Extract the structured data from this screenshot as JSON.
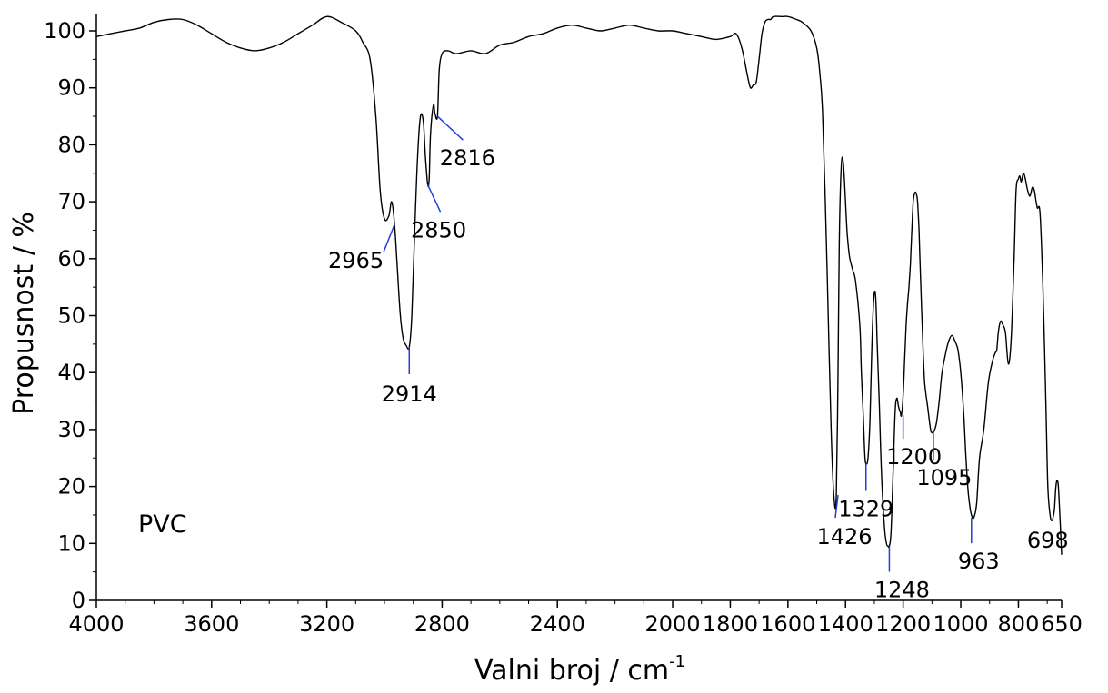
{
  "chart_data": {
    "type": "line",
    "title": "",
    "sample_label": "PVC",
    "xlabel": "Valni broj / cm",
    "xlabel_superscript": "-1",
    "ylabel": "Propusnost / %",
    "xlim": [
      4000,
      650
    ],
    "x_reversed": true,
    "ylim": [
      0,
      104
    ],
    "x_ticks": [
      4000,
      3600,
      3200,
      2800,
      2400,
      2000,
      1800,
      1600,
      1400,
      1200,
      1000,
      800,
      650
    ],
    "y_ticks": [
      0,
      10,
      20,
      30,
      40,
      50,
      60,
      70,
      80,
      90,
      100
    ],
    "grid": false,
    "line_color": "#000000",
    "peak_marker_color": "#1f3fe0",
    "series": [
      {
        "x": [
          4000,
          3950,
          3900,
          3850,
          3800,
          3750,
          3700,
          3650,
          3600,
          3550,
          3500,
          3450,
          3400,
          3350,
          3300,
          3250,
          3200,
          3150,
          3100,
          3075,
          3050,
          3030,
          3015,
          3000,
          2985,
          2975,
          2965,
          2955,
          2945,
          2935,
          2925,
          2914,
          2905,
          2895,
          2885,
          2875,
          2865,
          2858,
          2850,
          2845,
          2840,
          2830,
          2825,
          2816,
          2810,
          2800,
          2780,
          2750,
          2700,
          2650,
          2600,
          2550,
          2500,
          2450,
          2400,
          2350,
          2300,
          2250,
          2200,
          2150,
          2100,
          2050,
          2000,
          1950,
          1900,
          1850,
          1800,
          1780,
          1760,
          1740,
          1730,
          1720,
          1710,
          1700,
          1690,
          1680,
          1670,
          1660,
          1650,
          1620,
          1600,
          1570,
          1550,
          1520,
          1500,
          1490,
          1480,
          1470,
          1460,
          1450,
          1440,
          1432,
          1426,
          1422,
          1415,
          1408,
          1400,
          1395,
          1390,
          1385,
          1375,
          1365,
          1350,
          1345,
          1338,
          1333,
          1329,
          1322,
          1315,
          1310,
          1305,
          1300,
          1295,
          1290,
          1283,
          1275,
          1265,
          1258,
          1252,
          1248,
          1242,
          1235,
          1228,
          1222,
          1216,
          1210,
          1206,
          1200,
          1195,
          1190,
          1185,
          1180,
          1175,
          1170,
          1165,
          1160,
          1155,
          1150,
          1145,
          1140,
          1135,
          1130,
          1125,
          1115,
          1105,
          1100,
          1095,
          1085,
          1075,
          1065,
          1050,
          1040,
          1030,
          1020,
          1010,
          1000,
          990,
          983,
          976,
          970,
          963,
          955,
          945,
          935,
          920,
          905,
          890,
          880,
          875,
          870,
          862,
          855,
          845,
          835,
          825,
          815,
          808,
          800,
          795,
          790,
          783,
          776,
          768,
          760,
          752,
          745,
          735,
          725,
          715,
          705,
          698,
          690,
          685,
          680,
          675,
          670,
          665,
          660,
          650
        ],
        "y": [
          99,
          99.5,
          100,
          100.5,
          101.5,
          102,
          102,
          101,
          99.5,
          98,
          97,
          96.5,
          97,
          98,
          99.5,
          101,
          102.5,
          101.5,
          100,
          98,
          95,
          85,
          72,
          67,
          67.5,
          70,
          66,
          58,
          50,
          46,
          44.8,
          44.5,
          50,
          65,
          78,
          85,
          84,
          78,
          73,
          74,
          82,
          87,
          85.5,
          85,
          93,
          96,
          96.5,
          96,
          96.5,
          96,
          97.5,
          98,
          99,
          99.5,
          100.5,
          101,
          100.5,
          100,
          100.5,
          101,
          100.5,
          100,
          100,
          99.5,
          99,
          98.5,
          99,
          99.5,
          97,
          92,
          90,
          90.5,
          91,
          95,
          99.5,
          101.5,
          102,
          102,
          102.5,
          102.5,
          102.5,
          102,
          101.5,
          100,
          97,
          93,
          86,
          70,
          50,
          30,
          18,
          18.5,
          40,
          62,
          76,
          77,
          70,
          65,
          62,
          60,
          58,
          56,
          48,
          40,
          32,
          25.5,
          24,
          25,
          32,
          42,
          50,
          54,
          53,
          45,
          35,
          22,
          13,
          10,
          9.5,
          9.5,
          12,
          22,
          33,
          35.5,
          34,
          33,
          32.5,
          36,
          42,
          48,
          52,
          55,
          59,
          65,
          70,
          71.5,
          71.5,
          70,
          65,
          57,
          50,
          43,
          38,
          34,
          30,
          29.5,
          29.5,
          31,
          35,
          40,
          44,
          45.8,
          46.5,
          45.5,
          44,
          40,
          33,
          26,
          20,
          17,
          15,
          14.5,
          17,
          25,
          30,
          38,
          42,
          43.5,
          44,
          47,
          49,
          48.5,
          47,
          41.5,
          46,
          60,
          72,
          74,
          74.5,
          73.5,
          75,
          74,
          72,
          71,
          72.5,
          72,
          69,
          68,
          55,
          35,
          20,
          15,
          14,
          14.5,
          16,
          20,
          21,
          19,
          8
        ]
      }
    ],
    "peaks": [
      {
        "label": "2965",
        "x": 2965,
        "y": 66
      },
      {
        "label": "2914",
        "x": 2914,
        "y": 44.5
      },
      {
        "label": "2850",
        "x": 2850,
        "y": 73
      },
      {
        "label": "2816",
        "x": 2816,
        "y": 85
      },
      {
        "label": "1426",
        "x": 1426,
        "y": 18.5
      },
      {
        "label": "1329",
        "x": 1329,
        "y": 24
      },
      {
        "label": "1248",
        "x": 1248,
        "y": 9.5
      },
      {
        "label": "1200",
        "x": 1200,
        "y": 32.5
      },
      {
        "label": "1095",
        "x": 1095,
        "y": 29.5
      },
      {
        "label": "963",
        "x": 963,
        "y": 14.5
      },
      {
        "label": "698",
        "x": 698,
        "y": 14
      }
    ]
  }
}
